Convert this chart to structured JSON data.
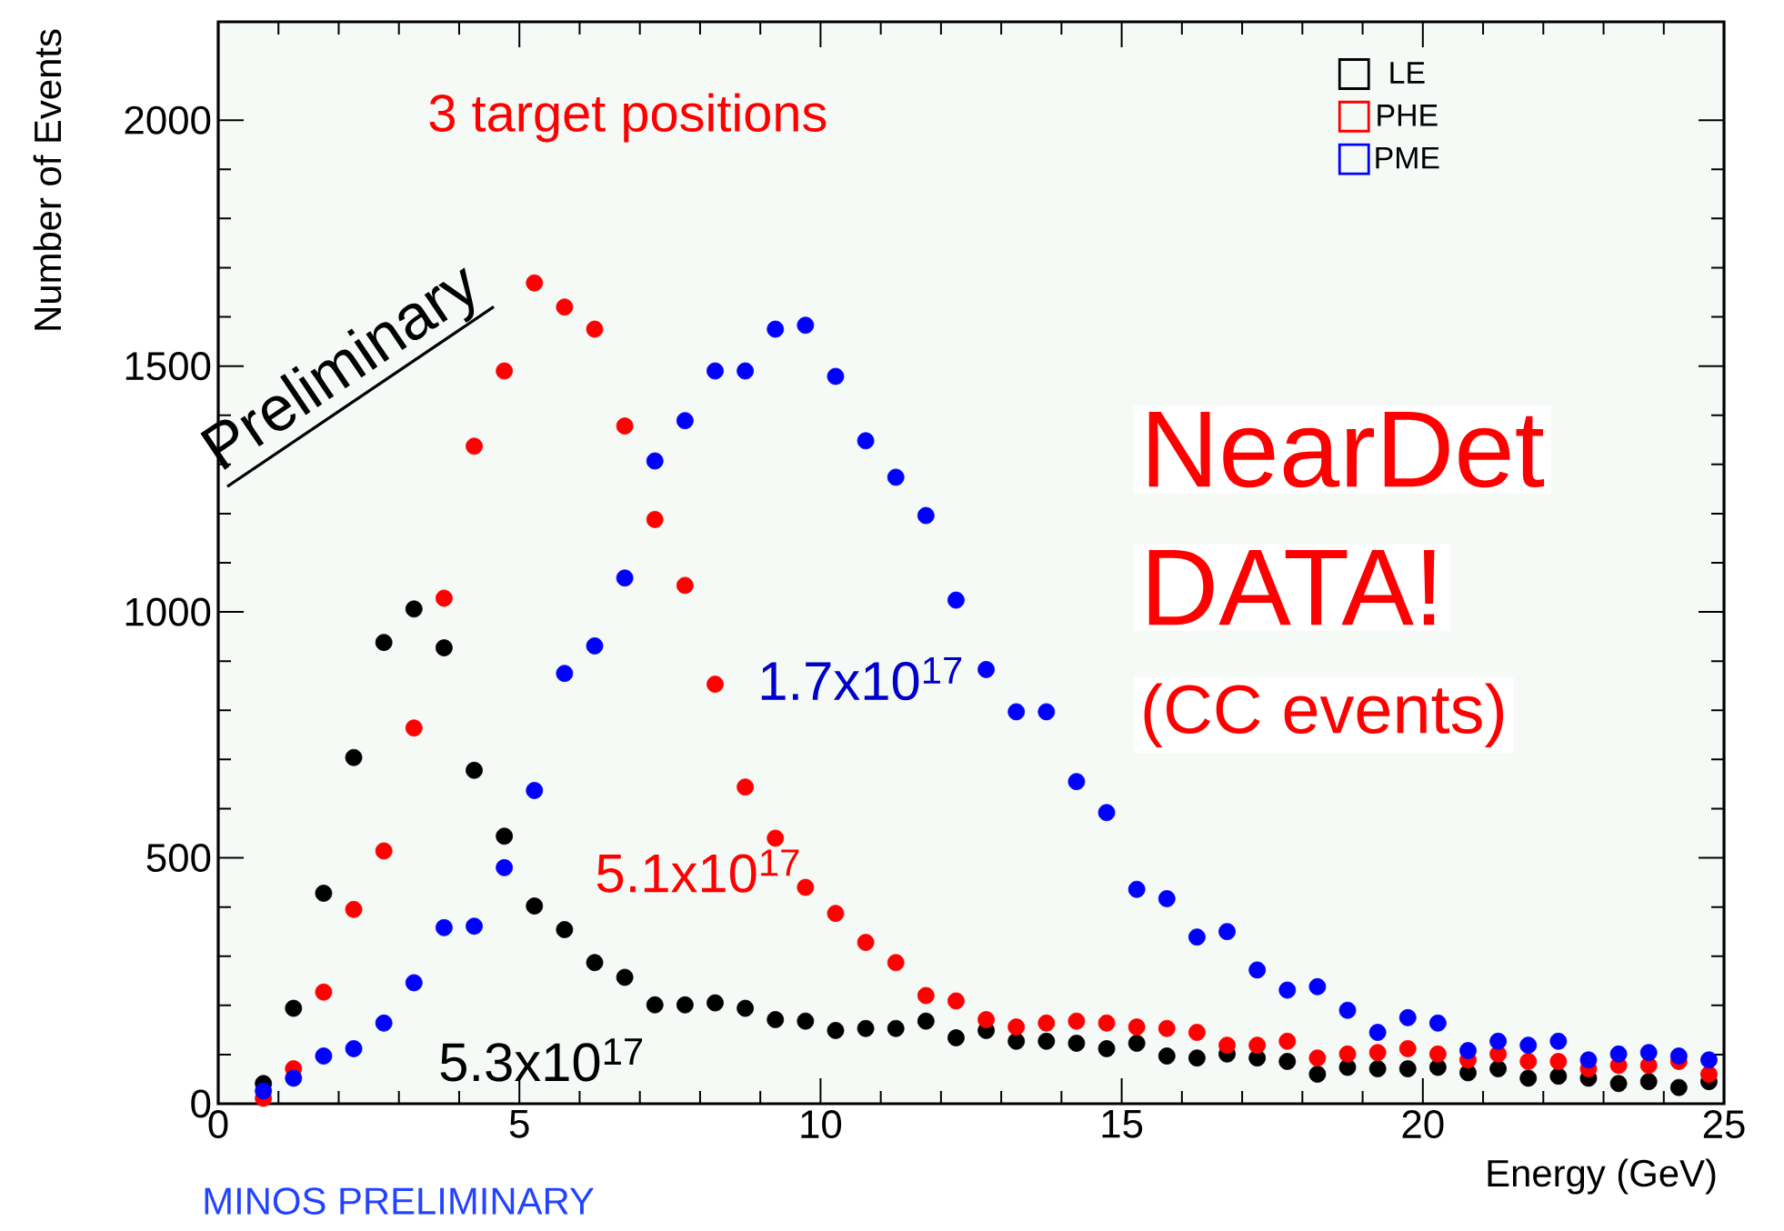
{
  "chart_data": {
    "type": "scatter",
    "xlabel": "Energy (GeV)",
    "ylabel": "Number of Events",
    "x": [
      0.75,
      1.25,
      1.75,
      2.25,
      2.75,
      3.25,
      3.75,
      4.25,
      4.75,
      5.25,
      5.75,
      6.25,
      6.75,
      7.25,
      7.75,
      8.25,
      8.75,
      9.25,
      9.75,
      10.25,
      10.75,
      11.25,
      11.75,
      12.25,
      12.75,
      13.25,
      13.75,
      14.25,
      14.75,
      15.25,
      15.75,
      16.25,
      16.75,
      17.25,
      17.75,
      18.25,
      18.75,
      19.25,
      19.75,
      20.25,
      20.75,
      21.25,
      21.75,
      22.25,
      22.75,
      23.25,
      23.75,
      24.25,
      24.75
    ],
    "series": [
      {
        "name": "LE",
        "color": "#000000",
        "values": [
          41,
          194,
          428,
          704,
          938,
          1006,
          927,
          678,
          544,
          402,
          354,
          287,
          257,
          201,
          201,
          205,
          194,
          171,
          168,
          149,
          153,
          153,
          168,
          134,
          149,
          127,
          127,
          123,
          112,
          123,
          97,
          93,
          101,
          93,
          86,
          60,
          74,
          71,
          71,
          74,
          63,
          71,
          52,
          56,
          52,
          41,
          45,
          33,
          45
        ]
      },
      {
        "name": "PHE",
        "color": "#ff0000",
        "values": [
          11,
          71,
          227,
          395,
          514,
          764,
          1028,
          1337,
          1490,
          1669,
          1620,
          1575,
          1378,
          1188,
          1054,
          853,
          644,
          540,
          440,
          387,
          328,
          287,
          220,
          209,
          171,
          156,
          164,
          168,
          164,
          156,
          153,
          145,
          119,
          119,
          127,
          93,
          101,
          104,
          112,
          101,
          89,
          101,
          86,
          86,
          71,
          78,
          78,
          86,
          60
        ]
      },
      {
        "name": "PME",
        "color": "#0000ff",
        "values": [
          26,
          52,
          97,
          112,
          164,
          246,
          358,
          361,
          480,
          637,
          875,
          931,
          1069,
          1307,
          1389,
          1490,
          1490,
          1575,
          1583,
          1479,
          1348,
          1274,
          1196,
          1024,
          883,
          797,
          797,
          655,
          592,
          436,
          417,
          339,
          350,
          272,
          231,
          238,
          190,
          145,
          175,
          164,
          108,
          127,
          119,
          127,
          89,
          101,
          104,
          97,
          89
        ]
      }
    ],
    "xlim": [
      0,
      25
    ],
    "ylim": [
      0,
      2200
    ],
    "xticks": [
      0,
      5,
      10,
      15,
      20,
      25
    ],
    "yticks": [
      0,
      500,
      1000,
      1500,
      2000
    ],
    "marker": "circle",
    "legend": "top right",
    "annotations": [
      "3 target positions",
      "Preliminary",
      "NearDet",
      "DATA!",
      "(CC events)",
      "1.7x10$^{17}$",
      "5.1x10$^{17}$",
      "5.3x10$^{17}$",
      "MINOS PRELIMINARY"
    ]
  }
}
